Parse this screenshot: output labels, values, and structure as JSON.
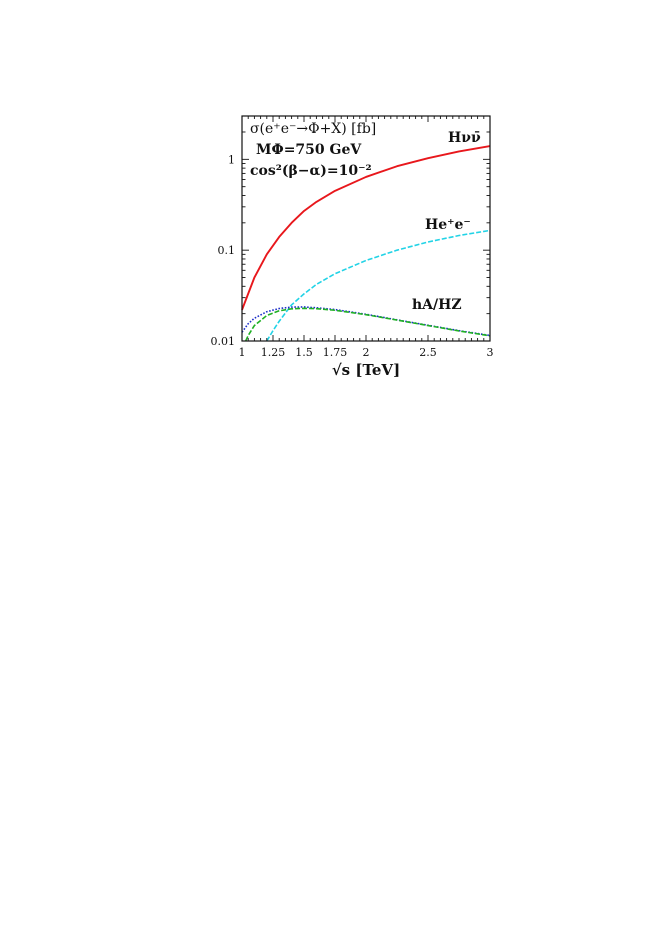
{
  "chart_data": {
    "type": "line",
    "xlabel": "√s [TeV]",
    "ylabel": "",
    "xlim": [
      1,
      3
    ],
    "ylim": [
      0.01,
      3
    ],
    "yscale": "log",
    "grid": false,
    "legend": "none",
    "x_ticks": [
      {
        "value": 1,
        "label": "1"
      },
      {
        "value": 1.25,
        "label": "1.25"
      },
      {
        "value": 1.5,
        "label": "1.5"
      },
      {
        "value": 1.75,
        "label": "1.75"
      },
      {
        "value": 2,
        "label": "2"
      },
      {
        "value": 2.5,
        "label": "2.5"
      },
      {
        "value": 3,
        "label": "3"
      }
    ],
    "y_ticks": [
      {
        "value": 0.01,
        "label": "0.01"
      },
      {
        "value": 0.1,
        "label": "0.1"
      },
      {
        "value": 1,
        "label": "1"
      }
    ],
    "annotations": [
      "σ(e⁺e⁻→Φ+X) [fb]",
      "MΦ=750 GeV",
      "cos²(β−α)=10⁻²"
    ],
    "series": [
      {
        "name": "Hνν̄",
        "color": "#e8171c",
        "dash": "solid",
        "x": [
          1.0,
          1.1,
          1.2,
          1.3,
          1.4,
          1.5,
          1.6,
          1.75,
          2.0,
          2.25,
          2.5,
          2.75,
          3.0
        ],
        "y": [
          0.022,
          0.05,
          0.09,
          0.14,
          0.2,
          0.27,
          0.34,
          0.45,
          0.64,
          0.84,
          1.03,
          1.22,
          1.4
        ]
      },
      {
        "name": "He⁺e⁻",
        "color": "#22d3e6",
        "dash": "dashed",
        "x": [
          1.2,
          1.25,
          1.3,
          1.4,
          1.5,
          1.6,
          1.75,
          2.0,
          2.25,
          2.5,
          2.75,
          3.0
        ],
        "y": [
          0.01,
          0.013,
          0.0165,
          0.025,
          0.033,
          0.042,
          0.055,
          0.077,
          0.1,
          0.123,
          0.145,
          0.165
        ]
      },
      {
        "name": "hA",
        "color": "#1c2ec8",
        "dash": "dotted",
        "x": [
          1.0,
          1.05,
          1.1,
          1.2,
          1.3,
          1.4,
          1.5,
          1.6,
          1.75,
          2.0,
          2.25,
          2.5,
          2.75,
          3.0
        ],
        "y": [
          0.0125,
          0.0155,
          0.0178,
          0.021,
          0.0228,
          0.0236,
          0.0237,
          0.0232,
          0.0222,
          0.0197,
          0.0171,
          0.0149,
          0.013,
          0.0115
        ]
      },
      {
        "name": "HZ",
        "color": "#1fb024",
        "dash": "dashed",
        "x": [
          1.03,
          1.05,
          1.1,
          1.2,
          1.3,
          1.4,
          1.5,
          1.6,
          1.75,
          2.0,
          2.25,
          2.5,
          2.75,
          3.0
        ],
        "y": [
          0.01,
          0.0115,
          0.0148,
          0.0191,
          0.0215,
          0.0226,
          0.0229,
          0.0227,
          0.0218,
          0.0195,
          0.017,
          0.0148,
          0.0129,
          0.0114
        ]
      }
    ],
    "curve_labels": [
      "Hνν̄",
      "He⁺e⁻",
      "hA/HZ"
    ]
  }
}
